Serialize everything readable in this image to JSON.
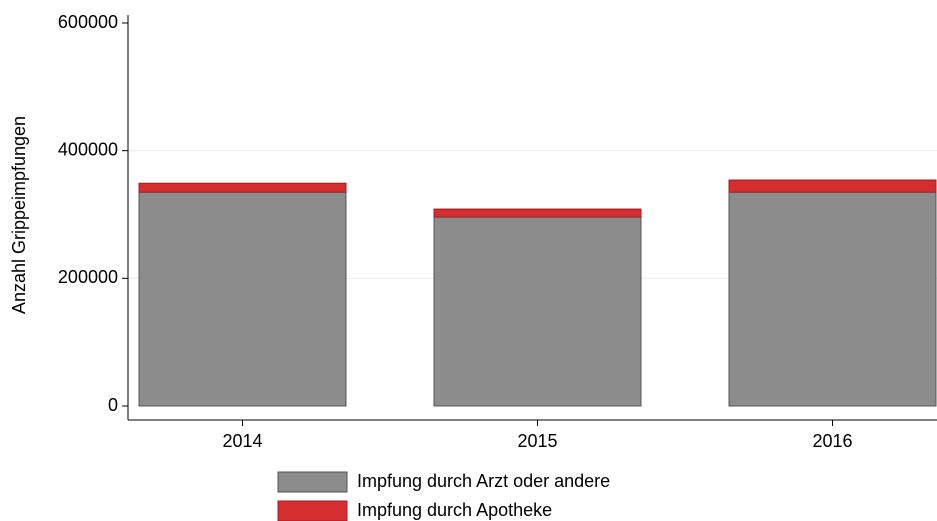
{
  "chart_data": {
    "type": "stacked_bar",
    "y_label": "Anzahl Grippeimpfungen",
    "categories": [
      "2014",
      "2015",
      "2016"
    ],
    "series": [
      {
        "name": "Impfung durch Arzt oder andere",
        "color": "#8c8c8c",
        "values": [
          335000,
          296000,
          335000
        ]
      },
      {
        "name": "Impfung durch Apotheke",
        "color": "#d62d31",
        "values": [
          14000,
          12500,
          19000
        ]
      }
    ],
    "ylim": [
      0,
      600000
    ],
    "yticks": [
      0,
      200000,
      400000,
      600000
    ],
    "grid": true
  }
}
